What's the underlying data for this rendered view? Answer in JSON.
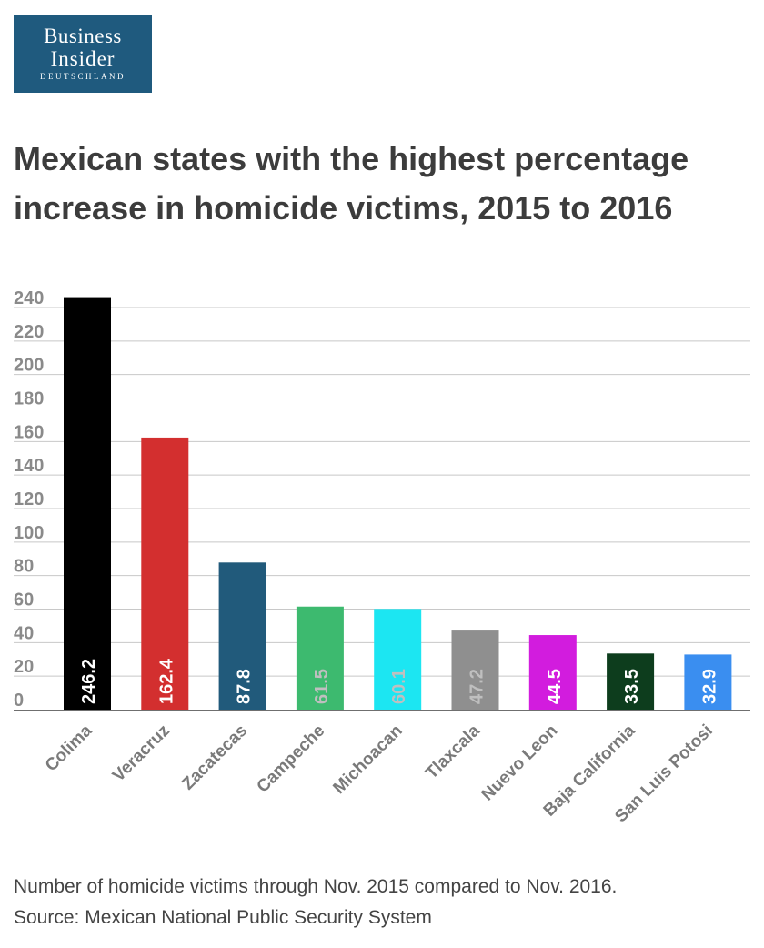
{
  "logo": {
    "line1": "Business",
    "line2": "Insider",
    "line3": "DEUTSCHLAND"
  },
  "title": "Mexican states with the highest percentage increase in homicide victims, 2015 to 2016",
  "footnote": {
    "line1": "Number of homicide victims through Nov. 2015 compared to Nov. 2016.",
    "line2": "Source: Mexican National Public Security System"
  },
  "chart_data": {
    "type": "bar",
    "title": "Mexican states with the highest percentage increase in homicide victims, 2015 to 2016",
    "xlabel": "",
    "ylabel": "",
    "ylim": [
      0,
      240
    ],
    "yticks": [
      0,
      20,
      40,
      60,
      80,
      100,
      120,
      140,
      160,
      180,
      200,
      220,
      240
    ],
    "grid": true,
    "categories": [
      "Colima",
      "Veracruz",
      "Zacatecas",
      "Campeche",
      "Michoacan",
      "Tlaxcala",
      "Nuevo Leon",
      "Baja California",
      "San Luis Potosi"
    ],
    "values": [
      246.2,
      162.4,
      87.8,
      61.5,
      60.1,
      47.2,
      44.5,
      33.5,
      32.9
    ],
    "data_labels": [
      "246.2",
      "162.4",
      "87.8",
      "61.5",
      "60.1",
      "47.2",
      "44.5",
      "33.5",
      "32.9"
    ],
    "colors": [
      "#000000",
      "#d32f2f",
      "#215a7b",
      "#3dba6f",
      "#1ce6f2",
      "#8f8f8f",
      "#d21cde",
      "#0d3d1d",
      "#3a8ef0"
    ],
    "label_colors": [
      "#ffffff",
      "#ffffff",
      "#ffffff",
      "#bfbfbf",
      "#bfbfbf",
      "#bfbfbf",
      "#ffffff",
      "#ffffff",
      "#ffffff"
    ]
  }
}
